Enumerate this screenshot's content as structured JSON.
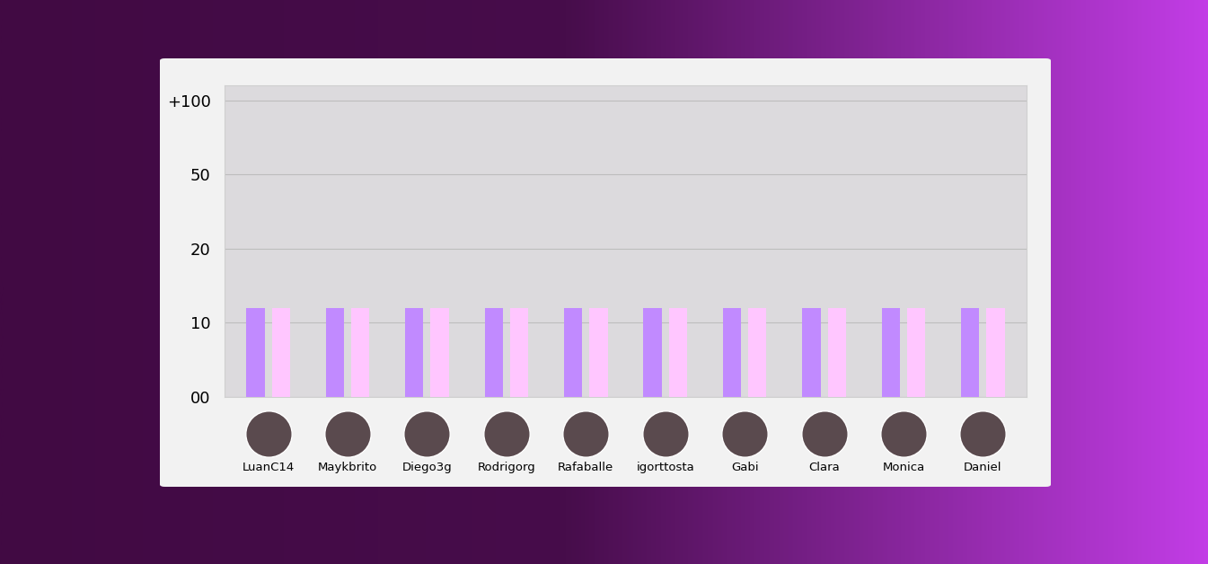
{
  "chart_data": {
    "type": "bar",
    "categories": [
      "LuanC14",
      "Maykbrito",
      "Diego3g",
      "Rodrigorg",
      "Rafaballe",
      "igorttosta",
      "Gabi",
      "Clara",
      "Monica",
      "Daniel"
    ],
    "series": [
      {
        "color": "#c18aff",
        "values": [
          12,
          12,
          12,
          12,
          12,
          12,
          12,
          12,
          12,
          12
        ]
      },
      {
        "color": "#ffc6ff",
        "values": [
          12,
          12,
          12,
          12,
          12,
          12,
          12,
          12,
          12,
          12
        ]
      }
    ],
    "ylim": [
      0,
      110
    ],
    "yticks": [
      {
        "value": 0,
        "label": "00"
      },
      10,
      20,
      50,
      {
        "value": 100,
        "label": "+100"
      }
    ],
    "grid": true
  }
}
